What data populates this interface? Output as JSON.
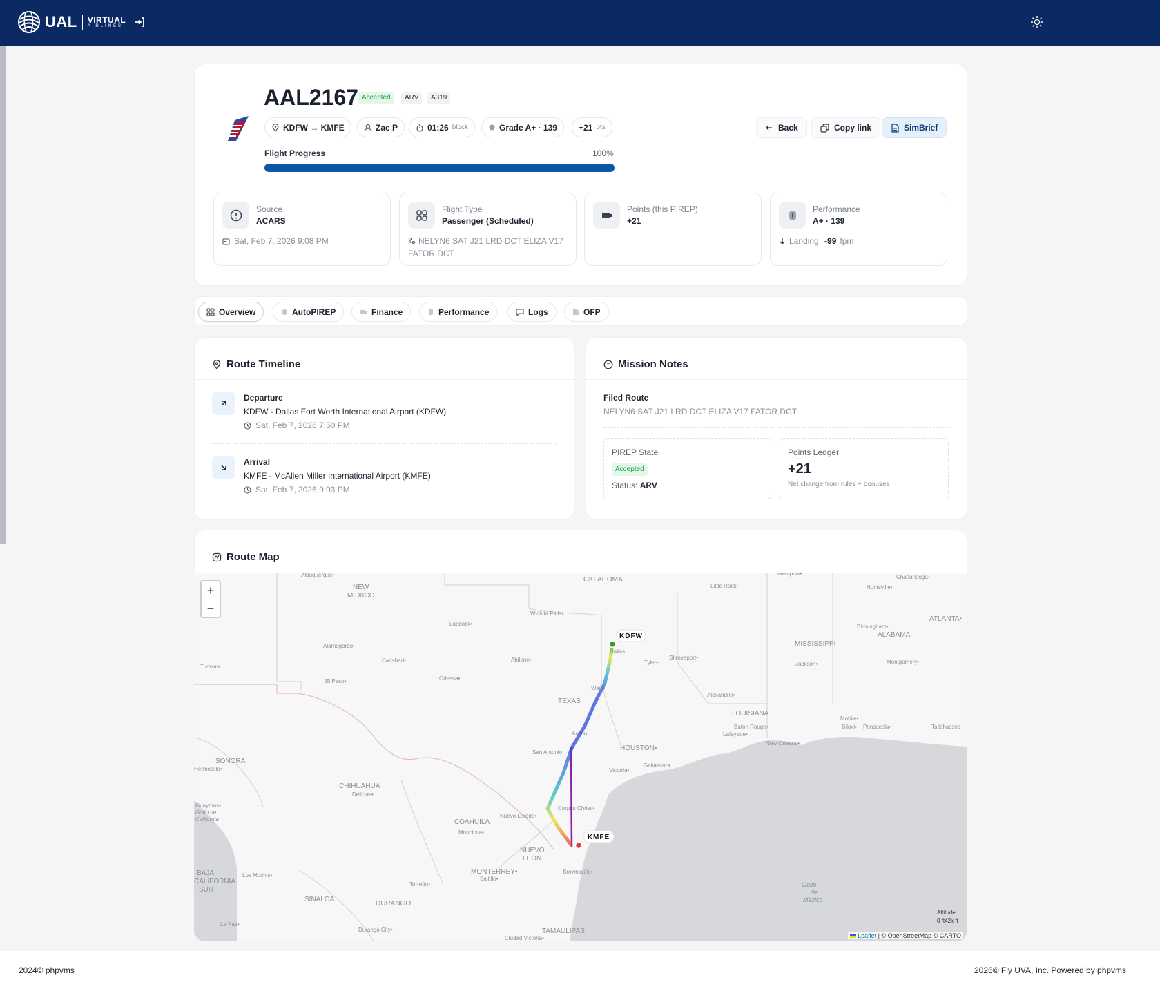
{
  "header": {
    "brand": "UAL",
    "brand_sub": "VIRTUAL",
    "brand_sub2": "AIRLINES",
    "login_icon": "sign-in-icon",
    "theme_icon": "sun-icon"
  },
  "flight": {
    "callsign": "AAL2167",
    "state_badge": "Accepted",
    "status_badge": "ARV",
    "aircraft_badge": "A319",
    "route_chip": "KDFW → KMFE",
    "pilot_chip": "Zac P",
    "block_time": "01:26",
    "block_label": "block",
    "grade_chip": "Grade A+ · 139",
    "points_chip": "+21",
    "points_unit": "pts",
    "progress_label": "Flight Progress",
    "progress_text": "100%",
    "progress_value": 100
  },
  "actions": {
    "back": "Back",
    "copy_link": "Copy link",
    "simbrief": "SimBrief"
  },
  "stats": [
    {
      "label": "Source",
      "value": "ACARS",
      "sub": "Sat, Feb 7, 2026 9:08 PM"
    },
    {
      "label": "Flight Type",
      "value": "Passenger (Scheduled)",
      "sub": "NELYN6 SAT J21 LRD DCT ELIZA V17 FATOR DCT"
    },
    {
      "label": "Points (this PIREP)",
      "value": "+21",
      "sub": ""
    },
    {
      "label": "Performance",
      "value": "A+ · 139",
      "sub_prefix": "Landing:",
      "sub_value": "-99",
      "sub_unit": "fpm"
    }
  ],
  "tabs": [
    "Overview",
    "AutoPIREP",
    "Finance",
    "Performance",
    "Logs",
    "OFP"
  ],
  "timeline": {
    "title": "Route Timeline",
    "departure": {
      "label": "Departure",
      "name": "KDFW - Dallas Fort Worth International Airport (KDFW)",
      "time": "Sat, Feb 7, 2026 7:50 PM"
    },
    "arrival": {
      "label": "Arrival",
      "name": "KMFE - McAllen Miller International Airport (KMFE)",
      "time": "Sat, Feb 7, 2026 9:03 PM"
    }
  },
  "notes": {
    "title": "Mission Notes",
    "filed_label": "Filed Route",
    "filed_route": "NELYN6 SAT J21 LRD DCT ELIZA V17 FATOR DCT",
    "pirep_state_label": "PIREP State",
    "pirep_state": "Accepted",
    "status_label": "Status:",
    "status_value": "ARV",
    "ledger_label": "Points Ledger",
    "ledger_value": "+21",
    "ledger_note": "Net change from rules + bonuses"
  },
  "map": {
    "title": "Route Map",
    "zoom_in": "+",
    "zoom_out": "−",
    "origin": "KDFW",
    "destination": "KMFE",
    "legend_title": "Altitude",
    "legend_range": "0 ft",
    "legend_max": "42k ft",
    "attribution_leaflet": "Leaflet",
    "attribution_rest": "| © OpenStreetMap © CARTO",
    "labels": [
      "Albuquerque",
      "NEW MEXICO",
      "OKLAHOMA",
      "Little Rock",
      "Memphis",
      "Chattanooga",
      "Huntsville",
      "ATLANTA",
      "Birmingham",
      "ALABAMA",
      "MISSISSIPPI",
      "Wichita Falls",
      "Lubbock",
      "Alamogordo",
      "Carlsbad",
      "Abilene",
      "Tyler",
      "Shreveport",
      "Jackson",
      "Montgomery",
      "Tucson",
      "El Paso",
      "Odessa",
      "TEXAS",
      "Waco",
      "Alexandria",
      "LOUISIANA",
      "Mobile",
      "Baton Rouge",
      "Lafayette",
      "Biloxi",
      "Pensacola",
      "Tallahassee",
      "New Orleans",
      "Austin",
      "HOUSTON",
      "Galveston",
      "San Antonio",
      "Victoria",
      "SONORA",
      "Hermosillo",
      "CHIHUAHUA",
      "Delicias",
      "Guaymas",
      "Golfo de California",
      "Nuevo Laredo",
      "Corpus Christi",
      "COAHUILA",
      "Monclova",
      "NUEVO LEÓN",
      "Brownsville",
      "MONTERREY",
      "Saltillo",
      "Torreón",
      "BAJA CALIFORNIA SUR",
      "Los Mochis",
      "SINALOA",
      "DURANGO",
      "Golfo de México",
      "La Paz",
      "Durango City",
      "TAMAULIPAS",
      "Ciudad Victoria",
      "Dallas"
    ]
  },
  "footer": {
    "left": "2024© phpvms",
    "right": "2026© Fly UVA, Inc.   Powered by phpvms"
  }
}
